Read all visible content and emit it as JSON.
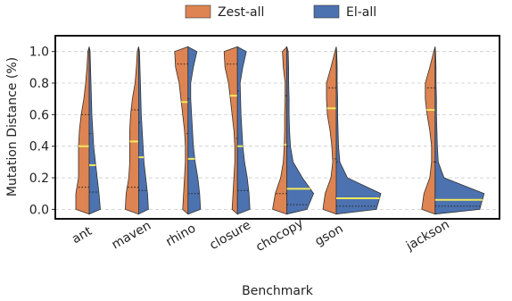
{
  "chart_data": {
    "type": "violin",
    "x_label": "Benchmark",
    "y_label": "Mutation Distance (%)",
    "categories": [
      "ant",
      "maven",
      "rhino",
      "closure",
      "chocopy",
      "gson",
      null,
      "jackson"
    ],
    "ylim": [
      -0.06,
      1.1
    ],
    "yticks": [
      {
        "value": 0,
        "label": "0.0"
      },
      0.2,
      0.4,
      0.6,
      0.8,
      {
        "value": 1,
        "label": "1.0"
      }
    ],
    "grid": true,
    "legend": "top",
    "density_y": [
      -0.03,
      0,
      0.1,
      0.2,
      0.3,
      0.4,
      0.5,
      0.6,
      0.7,
      0.8,
      0.9,
      1,
      1.03
    ],
    "median_color": "#f2e85a",
    "series": [
      {
        "name": "Zest-all",
        "color": "#dd8452",
        "median": [
          0.4,
          0.43,
          0.68,
          0.72,
          0.41,
          0.64,
          null,
          0.63
        ],
        "q1": [
          0.14,
          0.14,
          0.48,
          0.45,
          0.1,
          0.32,
          null,
          0.3
        ],
        "q3": [
          0.6,
          0.63,
          0.92,
          0.92,
          0.72,
          0.77,
          null,
          0.77
        ],
        "density": [
          [
            0,
            0.3,
            0.3,
            0.24,
            0.24,
            0.24,
            0.22,
            0.18,
            0.12,
            0.08,
            0.05,
            0.03,
            0
          ],
          [
            0,
            0.3,
            0.28,
            0.22,
            0.2,
            0.2,
            0.2,
            0.18,
            0.14,
            0.08,
            0.05,
            0.03,
            0
          ],
          [
            0,
            0.12,
            0.1,
            0.08,
            0.06,
            0.06,
            0.08,
            0.12,
            0.16,
            0.2,
            0.28,
            0.3,
            0
          ],
          [
            0,
            0.12,
            0.1,
            0.08,
            0.06,
            0.06,
            0.08,
            0.12,
            0.16,
            0.2,
            0.28,
            0.3,
            0
          ],
          [
            0,
            0.32,
            0.26,
            0.14,
            0.08,
            0.06,
            0.05,
            0.05,
            0.04,
            0.04,
            0.08,
            0.1,
            0
          ],
          [
            0,
            0.3,
            0.25,
            0.12,
            0.08,
            0.1,
            0.14,
            0.2,
            0.22,
            0.22,
            0.12,
            0.03,
            0
          ],
          null,
          [
            0,
            0.3,
            0.25,
            0.12,
            0.08,
            0.08,
            0.12,
            0.18,
            0.22,
            0.22,
            0.12,
            0.03,
            0
          ]
        ]
      },
      {
        "name": "El-all",
        "color": "#4c72b0",
        "median": [
          0.28,
          0.33,
          0.32,
          0.4,
          0.13,
          0.07,
          null,
          0.06
        ],
        "q1": [
          0.11,
          0.12,
          0.1,
          0.12,
          0.03,
          0.02,
          null,
          0.02
        ],
        "q3": [
          0.48,
          0.55,
          0.7,
          0.75,
          0.4,
          0.3,
          null,
          0.3
        ],
        "density": [
          [
            0,
            0.25,
            0.22,
            0.18,
            0.14,
            0.1,
            0.08,
            0.06,
            0.05,
            0.04,
            0.03,
            0.02,
            0
          ],
          [
            0,
            0.22,
            0.2,
            0.16,
            0.12,
            0.1,
            0.08,
            0.06,
            0.05,
            0.04,
            0.03,
            0.02,
            0
          ],
          [
            0,
            0.28,
            0.26,
            0.22,
            0.16,
            0.12,
            0.1,
            0.08,
            0.06,
            0.06,
            0.12,
            0.2,
            0
          ],
          [
            0,
            0.28,
            0.26,
            0.22,
            0.16,
            0.12,
            0.1,
            0.08,
            0.07,
            0.06,
            0.12,
            0.2,
            0
          ],
          [
            0,
            0.45,
            0.6,
            0.35,
            0.14,
            0.08,
            0.06,
            0.05,
            0.05,
            0.04,
            0.04,
            0.03,
            0
          ],
          [
            0,
            0.9,
            1,
            0.25,
            0.08,
            0.05,
            0.04,
            0.03,
            0.03,
            0.02,
            0.02,
            0.01,
            0
          ],
          null,
          [
            0,
            1,
            1.1,
            0.2,
            0.07,
            0.05,
            0.04,
            0.03,
            0.03,
            0.02,
            0.02,
            0.01,
            0
          ]
        ]
      }
    ]
  }
}
